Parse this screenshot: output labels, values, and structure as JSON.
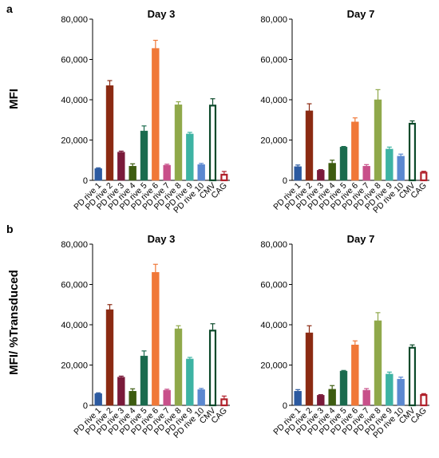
{
  "panels": [
    {
      "letter": "a",
      "ylabel": "MFI"
    },
    {
      "letter": "b",
      "ylabel": "MFI/ %Transduced"
    }
  ],
  "colors": [
    "#2c5aa0",
    "#8b2a12",
    "#7a1a3a",
    "#3d5c10",
    "#1a6b4e",
    "#f07838",
    "#c8508a",
    "#8fa84a",
    "#3db3a3",
    "#5b88d0",
    "#0c4a2a",
    "#b0202a"
  ],
  "hollow": [
    false,
    false,
    false,
    false,
    false,
    false,
    false,
    false,
    false,
    false,
    true,
    true
  ],
  "categories": [
    "PD rive 1",
    "PD rive 2",
    "PD rive 3",
    "PD rive 4",
    "PD rive 5",
    "PD rive 6",
    "PD rive 7",
    "PD rive 8",
    "PD rive 9",
    "PD rive 10",
    "CMV",
    "CAG"
  ],
  "chart_data": [
    {
      "type": "bar",
      "panel": "a",
      "title": "Day 3",
      "ylabel": "MFI",
      "ylim": [
        0,
        80000
      ],
      "yticks": [
        "0",
        "20,000",
        "40,000",
        "60,000",
        "80,000"
      ],
      "categories": [
        "PD rive 1",
        "PD rive 2",
        "PD rive 3",
        "PD rive 4",
        "PD rive 5",
        "PD rive 6",
        "PD rive 7",
        "PD rive 8",
        "PD rive 9",
        "PD rive 10",
        "CMV",
        "CAG"
      ],
      "values": [
        5800,
        47000,
        14000,
        7000,
        24500,
        65500,
        7500,
        37500,
        23000,
        7800,
        37500,
        3200
      ],
      "errors": [
        400,
        2500,
        500,
        1200,
        2500,
        4000,
        500,
        1500,
        800,
        600,
        3000,
        1200
      ]
    },
    {
      "type": "bar",
      "panel": "a",
      "title": "Day 7",
      "ylabel": "MFI",
      "ylim": [
        0,
        80000
      ],
      "yticks": [
        "0",
        "20,000",
        "40,000",
        "60,000",
        "80,000"
      ],
      "categories": [
        "PD rive 1",
        "PD rive 2",
        "PD rive 3",
        "PD rive 4",
        "PD rive 5",
        "PD rive 6",
        "PD rive 7",
        "PD rive 8",
        "PD rive 9",
        "PD rive 10",
        "CMV",
        "CAG"
      ],
      "values": [
        6800,
        34500,
        5000,
        8500,
        16500,
        29000,
        7000,
        40000,
        15500,
        12000,
        28500,
        4200
      ],
      "errors": [
        800,
        3500,
        300,
        1500,
        300,
        2000,
        800,
        5000,
        1000,
        1000,
        1000,
        300
      ]
    },
    {
      "type": "bar",
      "panel": "b",
      "title": "Day 3",
      "ylabel": "MFI/ %Transduced",
      "ylim": [
        0,
        80000
      ],
      "yticks": [
        "0",
        "20,000",
        "40,000",
        "60,000",
        "80,000"
      ],
      "categories": [
        "PD rive 1",
        "PD rive 2",
        "PD rive 3",
        "PD rive 4",
        "PD rive 5",
        "PD rive 6",
        "PD rive 7",
        "PD rive 8",
        "PD rive 9",
        "PD rive 10",
        "CMV",
        "CAG"
      ],
      "values": [
        5800,
        47500,
        14000,
        7000,
        24500,
        66000,
        7500,
        38000,
        23000,
        7800,
        37500,
        3400
      ],
      "errors": [
        400,
        2500,
        500,
        1200,
        2500,
        4000,
        500,
        1500,
        800,
        600,
        3000,
        1200
      ]
    },
    {
      "type": "bar",
      "panel": "b",
      "title": "Day 7",
      "ylabel": "MFI/ %Transduced",
      "ylim": [
        0,
        80000
      ],
      "yticks": [
        "0",
        "20,000",
        "40,000",
        "60,000",
        "80,000"
      ],
      "categories": [
        "PD rive 1",
        "PD rive 2",
        "PD rive 3",
        "PD rive 4",
        "PD rive 5",
        "PD rive 6",
        "PD rive 7",
        "PD rive 8",
        "PD rive 9",
        "PD rive 10",
        "CMV",
        "CAG"
      ],
      "values": [
        7000,
        36000,
        5000,
        8000,
        17000,
        30000,
        7500,
        42000,
        15500,
        13000,
        29000,
        5500
      ],
      "errors": [
        800,
        3500,
        300,
        1800,
        300,
        2000,
        800,
        4000,
        1000,
        1000,
        1000,
        300
      ]
    }
  ]
}
